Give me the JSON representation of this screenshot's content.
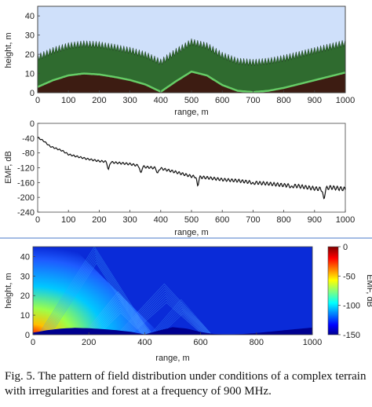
{
  "caption": "Fig. 5. The pattern of field distribution under conditions of a complex terrain with irregularities and forest at a frequency of 900 MHz.",
  "chart_data": [
    {
      "type": "area",
      "xlabel": "range, m",
      "ylabel": "height, m",
      "xlim": [
        0,
        1000
      ],
      "ylim": [
        0,
        45
      ],
      "xticks": [
        0,
        100,
        200,
        300,
        400,
        500,
        600,
        700,
        800,
        900,
        1000
      ],
      "yticks": [
        0,
        10,
        20,
        30,
        40
      ],
      "terrain_x": [
        0,
        50,
        100,
        150,
        200,
        250,
        300,
        350,
        400,
        450,
        500,
        550,
        600,
        650,
        700,
        750,
        800,
        850,
        900,
        950,
        1000
      ],
      "terrain_y": [
        3,
        6.5,
        9,
        10,
        9.5,
        8.2,
        6.6,
        4.3,
        0.5,
        6,
        11,
        9,
        4,
        1,
        0.3,
        1,
        2.5,
        4.5,
        6.5,
        8.5,
        10.5
      ],
      "forest_height": 15,
      "colors": {
        "sky": "#cfe0fa",
        "forest": "#2f6b2f",
        "terrain": "#3d1c12",
        "edge": "#66cc66"
      }
    },
    {
      "type": "line",
      "xlabel": "range, m",
      "ylabel": "EMF, dB",
      "xlim": [
        0,
        1000
      ],
      "ylim": [
        -240,
        0
      ],
      "xticks": [
        0,
        100,
        200,
        300,
        400,
        500,
        600,
        700,
        800,
        900,
        1000
      ],
      "yticks": [
        0,
        -40,
        -80,
        -120,
        -160,
        -200,
        -240
      ],
      "x": [
        0,
        20,
        40,
        60,
        80,
        100,
        130,
        160,
        200,
        230,
        250,
        300,
        350,
        400,
        450,
        500,
        550,
        600,
        650,
        700,
        750,
        800,
        850,
        900,
        930,
        950,
        1000
      ],
      "y": [
        -38,
        -48,
        -62,
        -68,
        -74,
        -84,
        -90,
        -96,
        -102,
        -104,
        -106,
        -110,
        -118,
        -122,
        -132,
        -143,
        -147,
        -152,
        -155,
        -160,
        -163,
        -167,
        -170,
        -176,
        -178,
        -173,
        -178
      ],
      "dips": [
        [
          230,
          -126
        ],
        [
          335,
          -135
        ],
        [
          390,
          -136
        ],
        [
          520,
          -168
        ],
        [
          700,
          -164
        ],
        [
          825,
          -174
        ],
        [
          930,
          -206
        ]
      ]
    },
    {
      "type": "heatmap",
      "xlabel": "range, m",
      "ylabel": "height, m",
      "xlim": [
        0,
        1000
      ],
      "ylim": [
        0,
        45
      ],
      "xticks": [
        0,
        200,
        400,
        600,
        800,
        1000
      ],
      "yticks": [
        0,
        10,
        20,
        30,
        40
      ],
      "colorbar": {
        "label": "EMF, dB",
        "ticks": [
          0,
          -50,
          -100,
          -150
        ],
        "range": [
          -150,
          0
        ]
      }
    }
  ]
}
